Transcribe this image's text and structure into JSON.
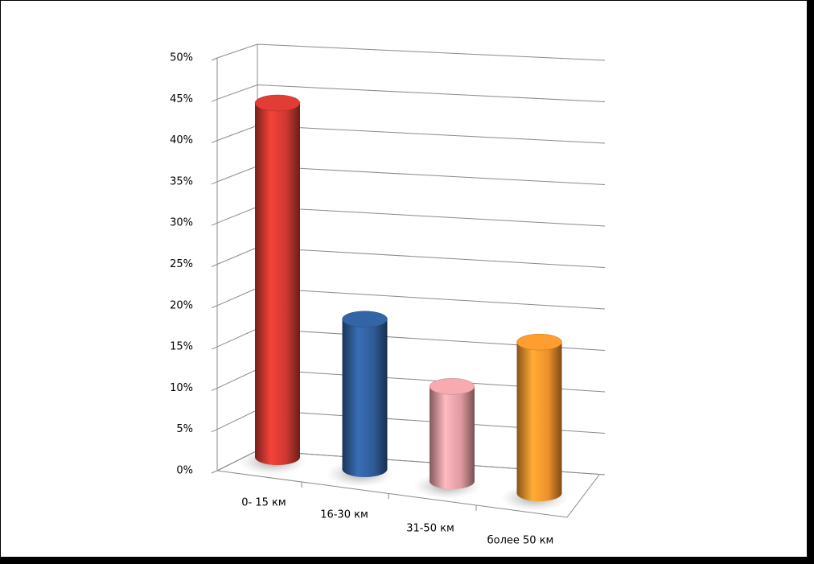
{
  "chart_data": {
    "type": "bar3d",
    "categories": [
      "0- 15 км",
      "16-30 км",
      "31-50 км",
      "более 50 км"
    ],
    "values": [
      44,
      18,
      11,
      17
    ],
    "colors": [
      "#d63a32",
      "#31609e",
      "#eba2a8",
      "#f8962e"
    ],
    "ylim": [
      0,
      50
    ],
    "yticks": [
      {
        "value": 0,
        "label": "0%"
      },
      {
        "value": 5,
        "label": "5%"
      },
      {
        "value": 10,
        "label": "10%"
      },
      {
        "value": 15,
        "label": "15%"
      },
      {
        "value": 20,
        "label": "20%"
      },
      {
        "value": 25,
        "label": "25%"
      },
      {
        "value": 30,
        "label": "30%"
      },
      {
        "value": 35,
        "label": "35%"
      },
      {
        "value": 40,
        "label": "40%"
      },
      {
        "value": 45,
        "label": "45%"
      },
      {
        "value": 50,
        "label": "50%"
      }
    ],
    "grid": true
  }
}
